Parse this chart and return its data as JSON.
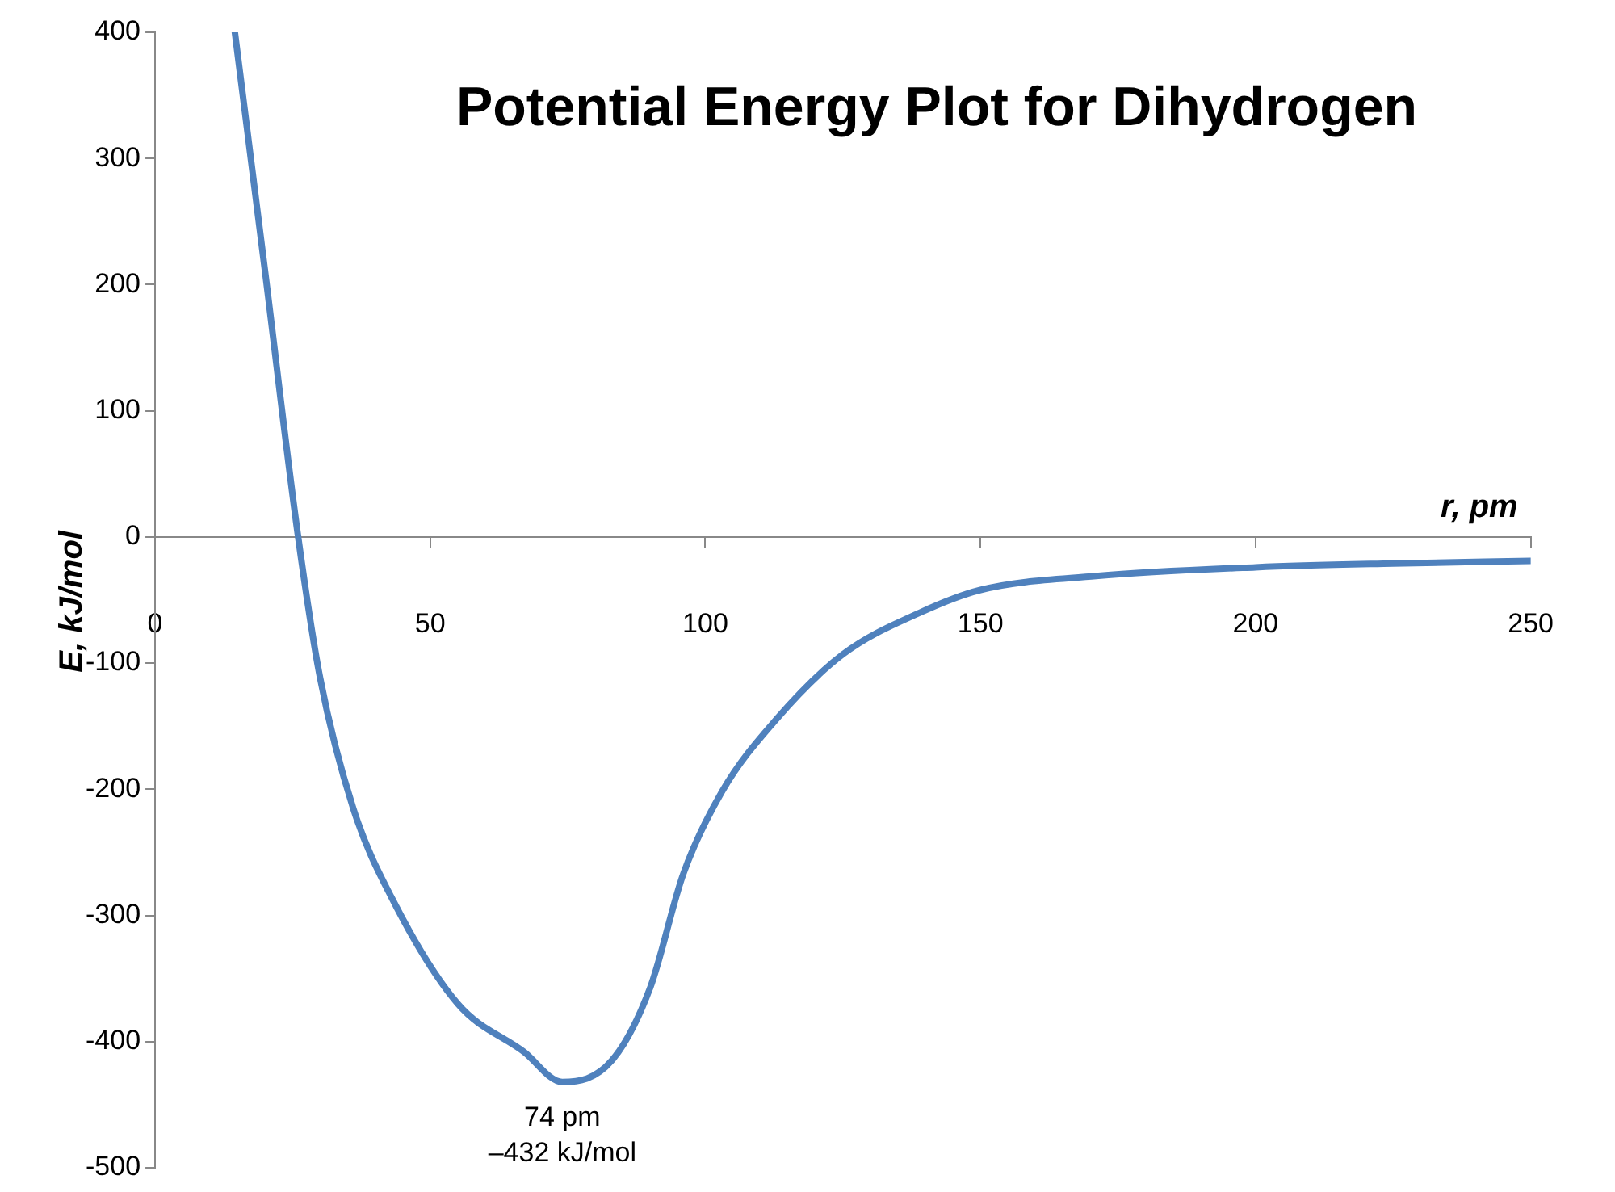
{
  "chart_data": {
    "type": "line",
    "title": "Potential Energy Plot for Dihydrogen",
    "xlabel": "r, pm",
    "ylabel": "E, kJ/mol",
    "xlim": [
      0,
      250
    ],
    "xticks": [
      0,
      50,
      100,
      150,
      200,
      250
    ],
    "ylim": [
      -500,
      400
    ],
    "yticks": [
      400,
      300,
      200,
      100,
      0,
      -100,
      -200,
      -300,
      -400,
      -500
    ],
    "series": [
      {
        "color": "#4f81bd",
        "x": [
          14.5,
          20,
          26,
          30,
          36,
          43,
          55,
          67,
          74,
          83,
          90,
          96,
          103,
          113,
          125,
          139,
          150,
          171,
          200,
          225,
          250
        ],
        "values": [
          400,
          210,
          0,
          -112,
          -215,
          -286,
          -370,
          -408,
          -432,
          -415,
          -357,
          -267,
          -202,
          -144,
          -93,
          -60,
          -42,
          -31,
          -24,
          -21,
          -19
        ]
      }
    ],
    "annotations": [
      {
        "text": "74 pm\n–432 kJ/mol",
        "x": 74,
        "y": -432
      }
    ],
    "marker": "none",
    "line_style": "solid"
  }
}
